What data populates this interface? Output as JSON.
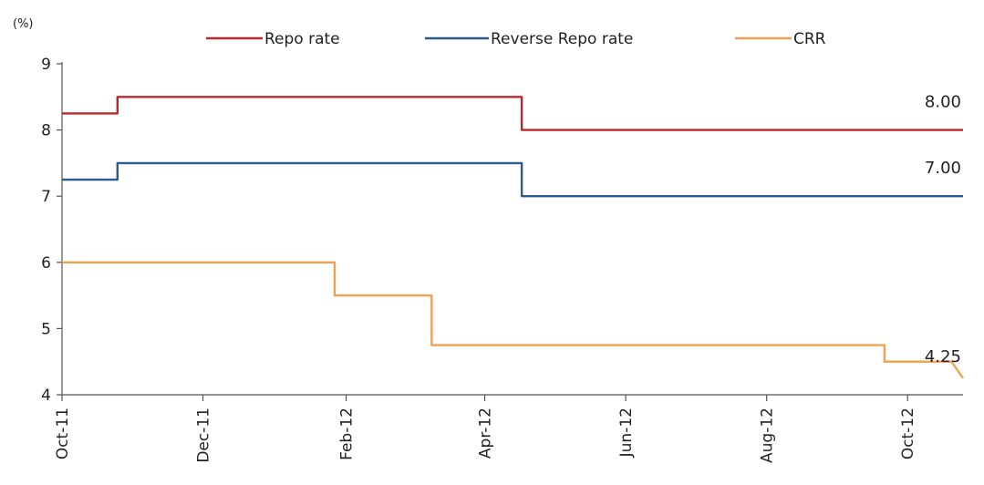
{
  "chart_data": {
    "type": "line",
    "ylabel": "(%)",
    "ylim": [
      4,
      9
    ],
    "yticks": [
      "4",
      "5",
      "6",
      "7",
      "8",
      "9"
    ],
    "xlim": [
      "2011-10-01",
      "2012-10-25"
    ],
    "xticks": [
      {
        "date": "2011-10-01",
        "label": "Oct-11"
      },
      {
        "date": "2011-12-01",
        "label": "Dec-11"
      },
      {
        "date": "2012-02-01",
        "label": "Feb-12"
      },
      {
        "date": "2012-04-01",
        "label": "Apr-12"
      },
      {
        "date": "2012-06-01",
        "label": "Jun-12"
      },
      {
        "date": "2012-08-01",
        "label": "Aug-12"
      },
      {
        "date": "2012-10-01",
        "label": "Oct-12"
      }
    ],
    "grid": false,
    "legend": "top",
    "series": [
      {
        "name": "Repo rate",
        "color": "#c0272d",
        "points": [
          [
            "2011-10-01",
            8.25
          ],
          [
            "2011-10-25",
            8.25
          ],
          [
            "2011-10-25",
            8.5
          ],
          [
            "2012-04-17",
            8.5
          ],
          [
            "2012-04-17",
            8.0
          ],
          [
            "2012-10-25",
            8.0
          ]
        ],
        "end_label": "8.00"
      },
      {
        "name": "Reverse Repo rate",
        "color": "#2c5a8c",
        "points": [
          [
            "2011-10-01",
            7.25
          ],
          [
            "2011-10-25",
            7.25
          ],
          [
            "2011-10-25",
            7.5
          ],
          [
            "2012-04-17",
            7.5
          ],
          [
            "2012-04-17",
            7.0
          ],
          [
            "2012-10-25",
            7.0
          ]
        ],
        "end_label": "7.00"
      },
      {
        "name": "CRR",
        "color": "#f0a050",
        "points": [
          [
            "2011-10-01",
            6.0
          ],
          [
            "2012-01-27",
            6.0
          ],
          [
            "2012-01-27",
            5.5
          ],
          [
            "2012-03-09",
            5.5
          ],
          [
            "2012-03-09",
            4.75
          ],
          [
            "2012-09-21",
            4.75
          ],
          [
            "2012-09-21",
            4.5
          ],
          [
            "2012-10-20",
            4.5
          ],
          [
            "2012-10-25",
            4.25
          ]
        ],
        "end_label": "4.25"
      }
    ]
  }
}
